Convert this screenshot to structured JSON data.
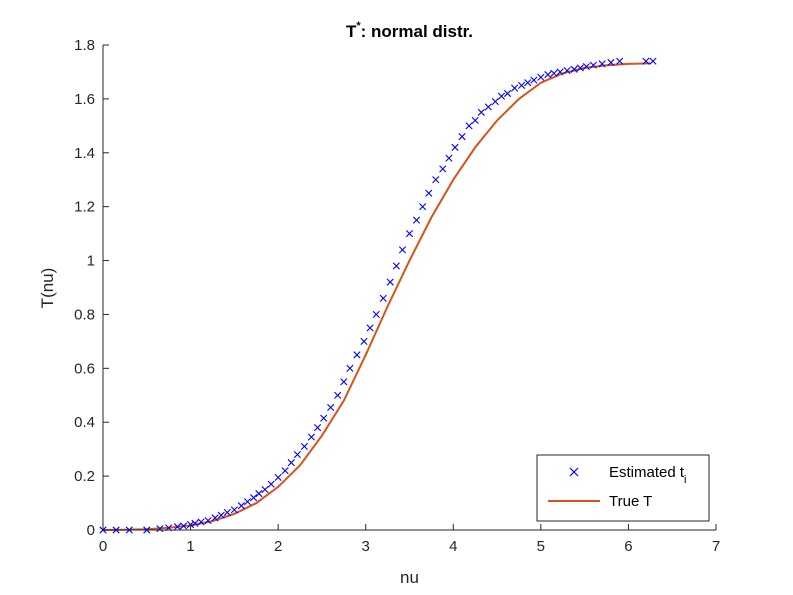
{
  "chart_data": {
    "type": "line",
    "title_main": "T",
    "title_sup": "*",
    "title_rest": ": normal distr.",
    "xlabel": "nu",
    "ylabel": "T(nu)",
    "xlim": [
      0,
      7
    ],
    "ylim": [
      0,
      1.8
    ],
    "x_ticks": [
      "0",
      "1",
      "2",
      "3",
      "4",
      "5",
      "6",
      "7"
    ],
    "y_ticks": [
      "0",
      "0.2",
      "0.4",
      "0.6",
      "0.8",
      "1",
      "1.2",
      "1.4",
      "1.6",
      "1.8"
    ],
    "grid": false,
    "legend_position": "bottom-right",
    "legend": {
      "estimated_main": "Estimated t",
      "estimated_sub": "i",
      "true_label": "True T"
    },
    "colors": {
      "estimated": "#0000ff",
      "true": "#d95319",
      "axis": "#262626"
    },
    "series": [
      {
        "name": "Estimated t_i",
        "marker": "x",
        "x": [
          0.0,
          0.15,
          0.3,
          0.5,
          0.65,
          0.75,
          0.85,
          0.92,
          1.0,
          1.05,
          1.12,
          1.2,
          1.28,
          1.35,
          1.42,
          1.5,
          1.58,
          1.65,
          1.72,
          1.78,
          1.85,
          1.92,
          2.0,
          2.08,
          2.15,
          2.22,
          2.3,
          2.38,
          2.45,
          2.52,
          2.6,
          2.68,
          2.75,
          2.82,
          2.9,
          2.98,
          3.05,
          3.12,
          3.2,
          3.28,
          3.35,
          3.42,
          3.5,
          3.58,
          3.65,
          3.72,
          3.8,
          3.88,
          3.95,
          4.02,
          4.1,
          4.18,
          4.25,
          4.32,
          4.4,
          4.48,
          4.55,
          4.62,
          4.7,
          4.78,
          4.85,
          4.92,
          5.0,
          5.08,
          5.15,
          5.22,
          5.3,
          5.38,
          5.45,
          5.52,
          5.6,
          5.7,
          5.8,
          5.9,
          6.2,
          6.28
        ],
        "y": [
          0.0,
          0.0,
          0.0,
          0.0,
          0.005,
          0.008,
          0.012,
          0.015,
          0.02,
          0.025,
          0.03,
          0.035,
          0.045,
          0.055,
          0.065,
          0.075,
          0.09,
          0.105,
          0.12,
          0.135,
          0.15,
          0.17,
          0.195,
          0.22,
          0.25,
          0.28,
          0.31,
          0.345,
          0.38,
          0.415,
          0.455,
          0.5,
          0.55,
          0.6,
          0.65,
          0.7,
          0.75,
          0.8,
          0.86,
          0.92,
          0.98,
          1.04,
          1.1,
          1.15,
          1.2,
          1.25,
          1.3,
          1.34,
          1.38,
          1.42,
          1.46,
          1.5,
          1.52,
          1.55,
          1.57,
          1.59,
          1.61,
          1.62,
          1.64,
          1.65,
          1.66,
          1.67,
          1.68,
          1.69,
          1.695,
          1.7,
          1.705,
          1.71,
          1.715,
          1.72,
          1.725,
          1.73,
          1.735,
          1.74,
          1.74,
          1.74
        ]
      },
      {
        "name": "True T",
        "marker": "line",
        "x": [
          0.0,
          0.25,
          0.5,
          0.75,
          1.0,
          1.25,
          1.5,
          1.75,
          2.0,
          2.25,
          2.5,
          2.75,
          3.0,
          3.25,
          3.5,
          3.75,
          4.0,
          4.25,
          4.5,
          4.75,
          5.0,
          5.25,
          5.5,
          5.75,
          6.0,
          6.25
        ],
        "y": [
          0.0,
          0.001,
          0.003,
          0.008,
          0.017,
          0.033,
          0.06,
          0.1,
          0.16,
          0.24,
          0.35,
          0.48,
          0.65,
          0.83,
          1.0,
          1.16,
          1.3,
          1.42,
          1.52,
          1.6,
          1.66,
          1.695,
          1.715,
          1.725,
          1.73,
          1.732
        ]
      }
    ]
  }
}
